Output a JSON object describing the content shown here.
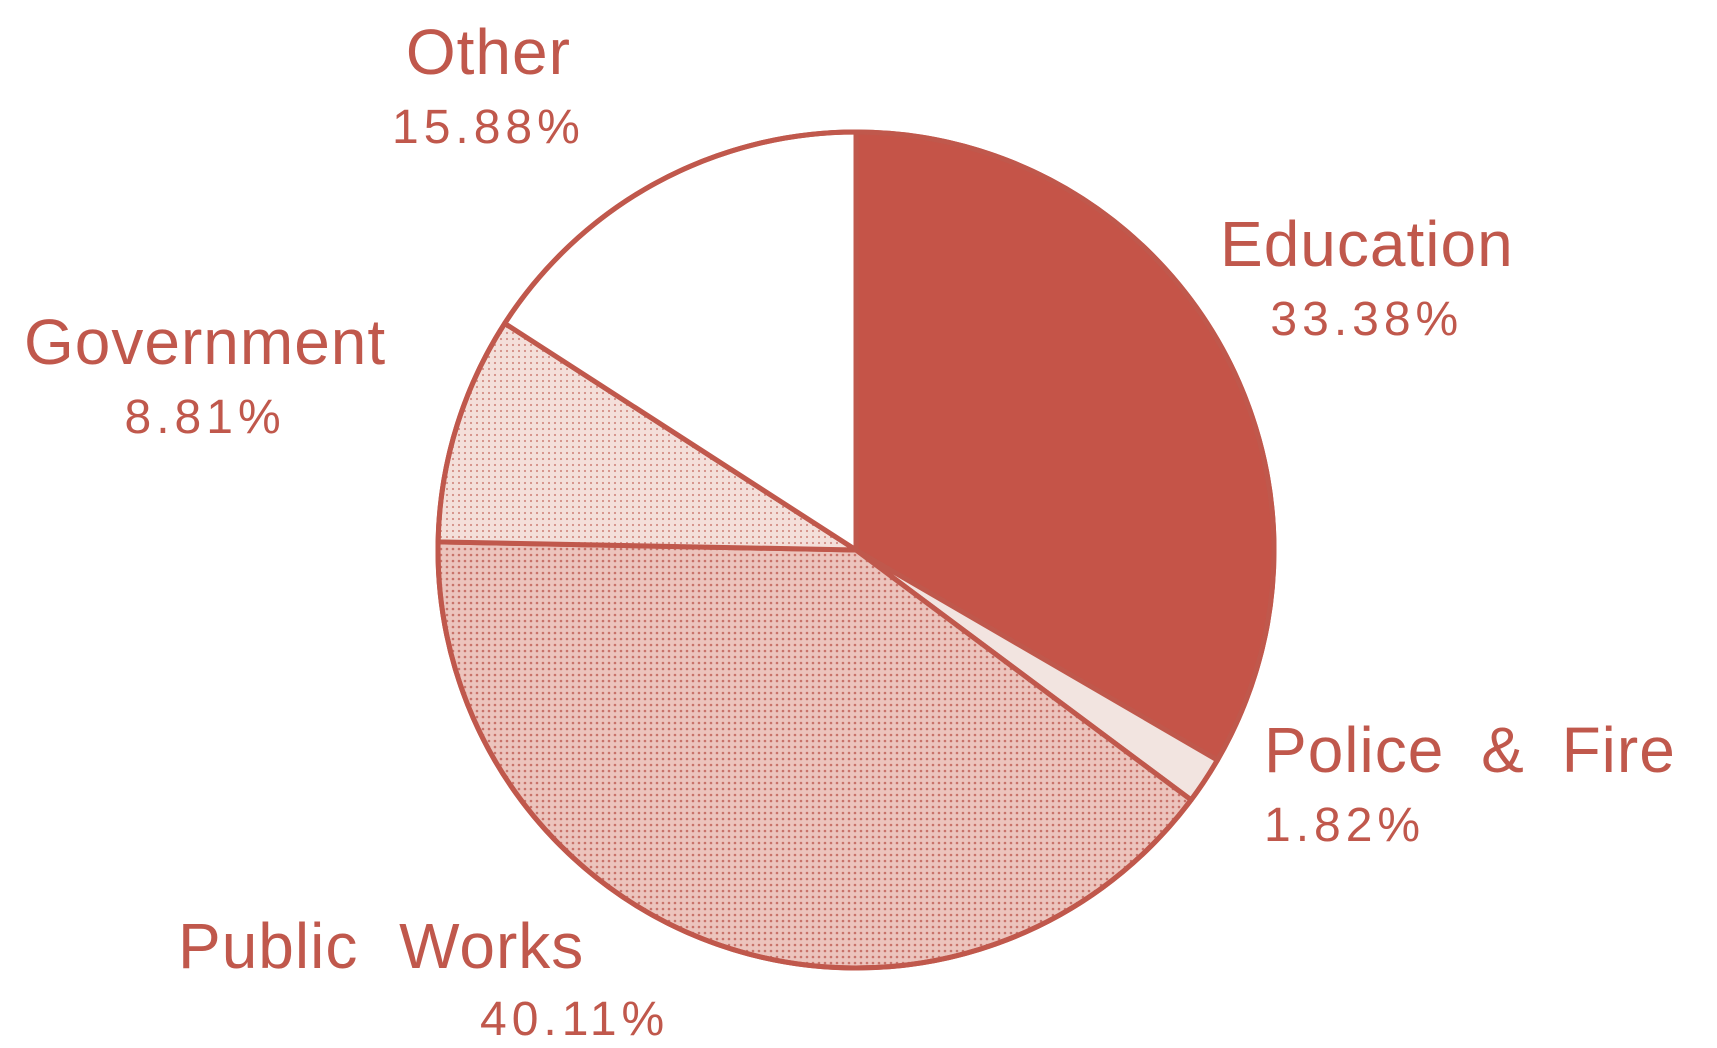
{
  "chart_data": {
    "type": "pie",
    "title": "",
    "slices": [
      {
        "label": "Education",
        "value": 33.38,
        "pct_text": "33.38%",
        "fill": "#c55448",
        "pattern": "solid"
      },
      {
        "label": "Police & Fire",
        "value": 1.82,
        "pct_text": "1.82%",
        "fill": "#f2e4e0",
        "pattern": "solid"
      },
      {
        "label": "Public Works",
        "value": 40.11,
        "pct_text": "40.11%",
        "fill": "#e6b8b0",
        "pattern": "dots"
      },
      {
        "label": "Government",
        "value": 8.81,
        "pct_text": "8.81%",
        "fill": "#efd6d0",
        "pattern": "dots"
      },
      {
        "label": "Other",
        "value": 15.88,
        "pct_text": "15.88%",
        "fill": "#ffffff",
        "pattern": "solid"
      }
    ],
    "start_angle": "12 o'clock",
    "direction": "clockwise",
    "legend": "none",
    "colors": {
      "text": "#c0584c",
      "outline": "#c0584c"
    }
  }
}
